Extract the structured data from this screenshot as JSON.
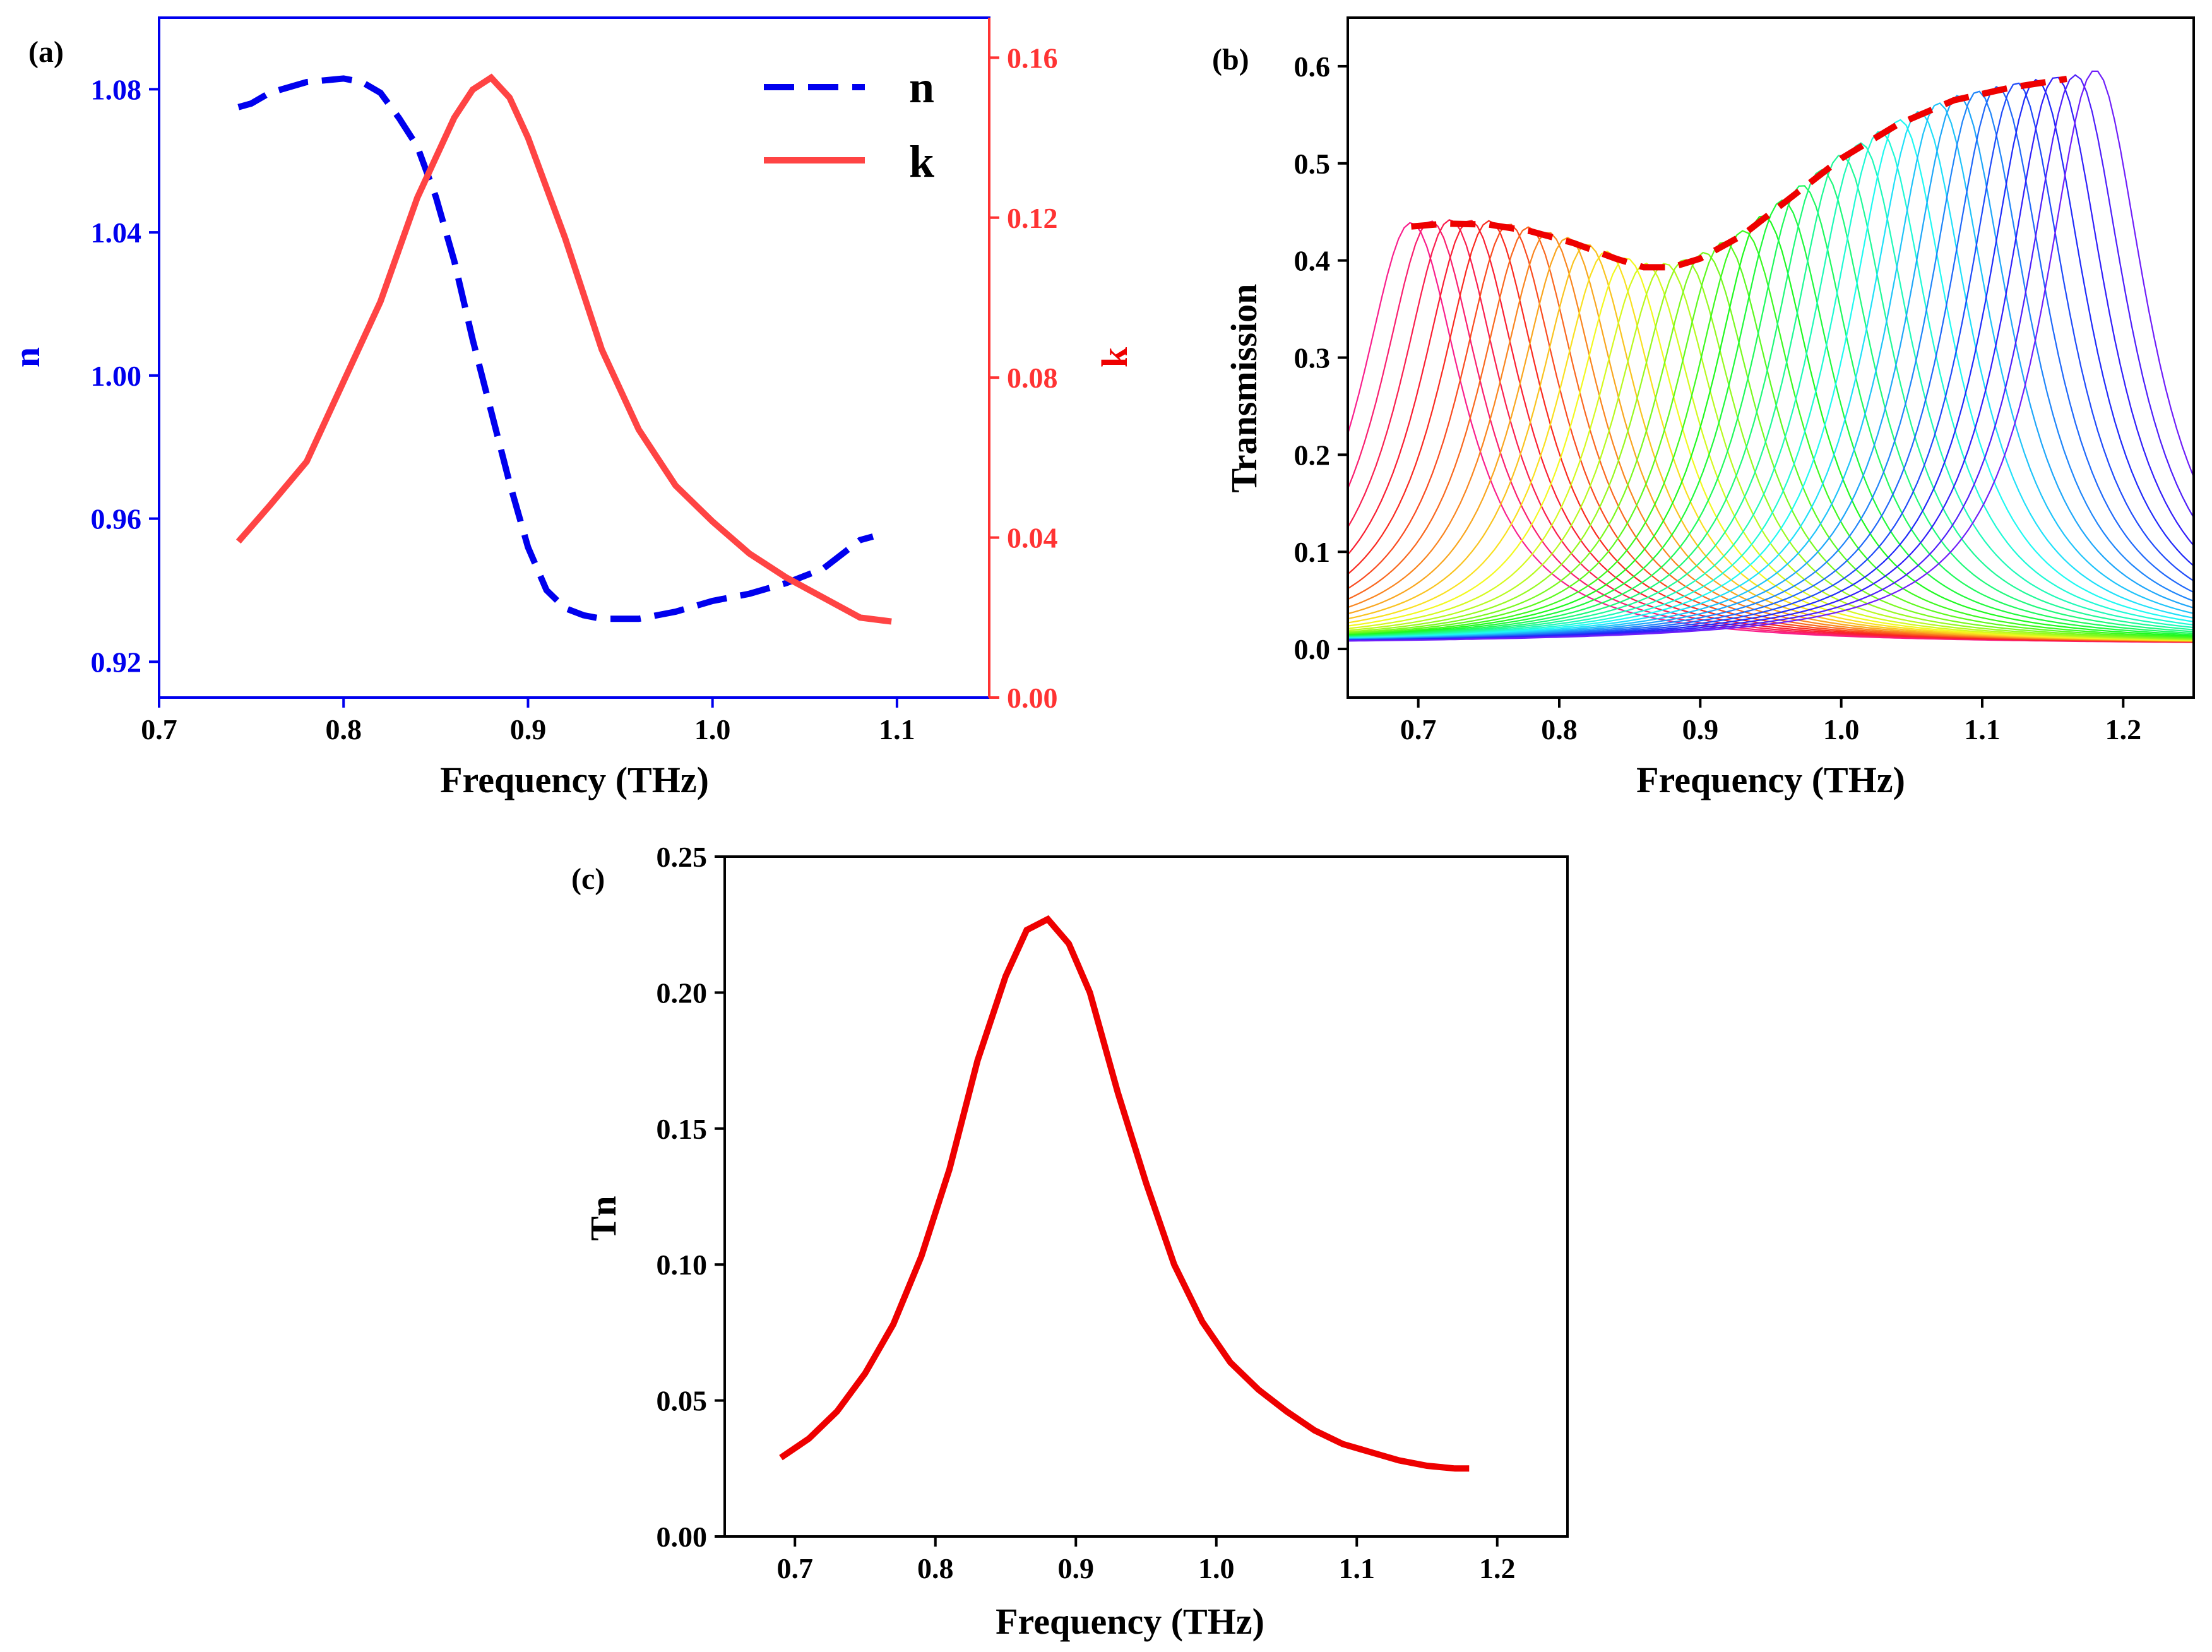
{
  "colors": {
    "n": "#0000ee",
    "k": "#ff4444",
    "axis_k": "#ff3333",
    "envelope": "#ee0000",
    "tn": "#ee0000"
  },
  "chart_data": [
    {
      "panel": "(a)",
      "type": "line",
      "xlabel": "Frequency (THz)",
      "ylabel_left": "n",
      "ylabel_right": "k",
      "xlim": [
        0.7,
        1.15
      ],
      "ylim_left": [
        0.91,
        1.1
      ],
      "ylim_right": [
        0.0,
        0.17
      ],
      "xticks": [
        "0.7",
        "0.8",
        "0.9",
        "1.0",
        "1.1"
      ],
      "yticks_left": [
        "0.92",
        "0.96",
        "1.00",
        "1.04",
        "1.08"
      ],
      "yticks_right": [
        "0.00",
        "0.04",
        "0.08",
        "0.12",
        "0.16"
      ],
      "legend": [
        "n",
        "k"
      ],
      "series": [
        {
          "name": "n",
          "axis": "left",
          "style": "dashed",
          "x": [
            0.743,
            0.75,
            0.76,
            0.78,
            0.8,
            0.81,
            0.82,
            0.83,
            0.84,
            0.85,
            0.86,
            0.87,
            0.88,
            0.89,
            0.9,
            0.91,
            0.92,
            0.93,
            0.94,
            0.95,
            0.96,
            0.98,
            1.0,
            1.02,
            1.04,
            1.06,
            1.07,
            1.08,
            1.087
          ],
          "y": [
            1.075,
            1.076,
            1.079,
            1.082,
            1.083,
            1.082,
            1.079,
            1.072,
            1.064,
            1.05,
            1.032,
            1.01,
            0.99,
            0.97,
            0.952,
            0.94,
            0.935,
            0.933,
            0.932,
            0.932,
            0.932,
            0.934,
            0.937,
            0.939,
            0.942,
            0.946,
            0.95,
            0.954,
            0.955
          ]
        },
        {
          "name": "k",
          "axis": "right",
          "style": "solid",
          "x": [
            0.743,
            0.76,
            0.78,
            0.8,
            0.82,
            0.84,
            0.86,
            0.87,
            0.88,
            0.89,
            0.9,
            0.92,
            0.94,
            0.96,
            0.98,
            1.0,
            1.02,
            1.04,
            1.06,
            1.08,
            1.097
          ],
          "y": [
            0.039,
            0.048,
            0.059,
            0.079,
            0.099,
            0.125,
            0.145,
            0.152,
            0.155,
            0.15,
            0.14,
            0.115,
            0.087,
            0.067,
            0.053,
            0.044,
            0.036,
            0.03,
            0.025,
            0.02,
            0.019
          ]
        }
      ]
    },
    {
      "panel": "(b)",
      "type": "line",
      "xlabel": "Frequency (THz)",
      "ylabel": "Transmission",
      "xlim": [
        0.65,
        1.25
      ],
      "ylim": [
        -0.05,
        0.65
      ],
      "xticks": [
        "0.7",
        "0.8",
        "0.9",
        "1.0",
        "1.1",
        "1.2"
      ],
      "yticks": [
        "0.0",
        "0.1",
        "0.2",
        "0.3",
        "0.4",
        "0.5",
        "0.6"
      ],
      "series_count": 36,
      "peak_frequency_range": [
        0.695,
        1.18
      ],
      "envelope": {
        "style": "dashed",
        "x": [
          0.695,
          0.72,
          0.75,
          0.78,
          0.81,
          0.84,
          0.86,
          0.88,
          0.9,
          0.93,
          0.96,
          1.0,
          1.04,
          1.08,
          1.12,
          1.16
        ],
        "y": [
          0.435,
          0.438,
          0.437,
          0.43,
          0.418,
          0.402,
          0.393,
          0.393,
          0.402,
          0.426,
          0.46,
          0.505,
          0.54,
          0.565,
          0.578,
          0.587
        ]
      }
    },
    {
      "panel": "(c)",
      "type": "line",
      "xlabel": "Frequency (THz)",
      "ylabel": "Tn",
      "xlim": [
        0.65,
        1.25
      ],
      "ylim": [
        0.0,
        0.25
      ],
      "xticks": [
        "0.7",
        "0.8",
        "0.9",
        "1.0",
        "1.1",
        "1.2"
      ],
      "yticks": [
        "0.00",
        "0.05",
        "0.10",
        "0.15",
        "0.20",
        "0.25"
      ],
      "series": [
        {
          "name": "Tn",
          "x": [
            0.69,
            0.71,
            0.73,
            0.75,
            0.77,
            0.79,
            0.81,
            0.83,
            0.85,
            0.865,
            0.88,
            0.895,
            0.91,
            0.93,
            0.95,
            0.97,
            0.99,
            1.01,
            1.03,
            1.05,
            1.07,
            1.09,
            1.11,
            1.13,
            1.15,
            1.17,
            1.18
          ],
          "y": [
            0.029,
            0.036,
            0.046,
            0.06,
            0.078,
            0.103,
            0.135,
            0.175,
            0.206,
            0.223,
            0.227,
            0.218,
            0.2,
            0.163,
            0.13,
            0.1,
            0.079,
            0.064,
            0.054,
            0.046,
            0.039,
            0.034,
            0.031,
            0.028,
            0.026,
            0.025,
            0.025
          ]
        }
      ]
    }
  ]
}
